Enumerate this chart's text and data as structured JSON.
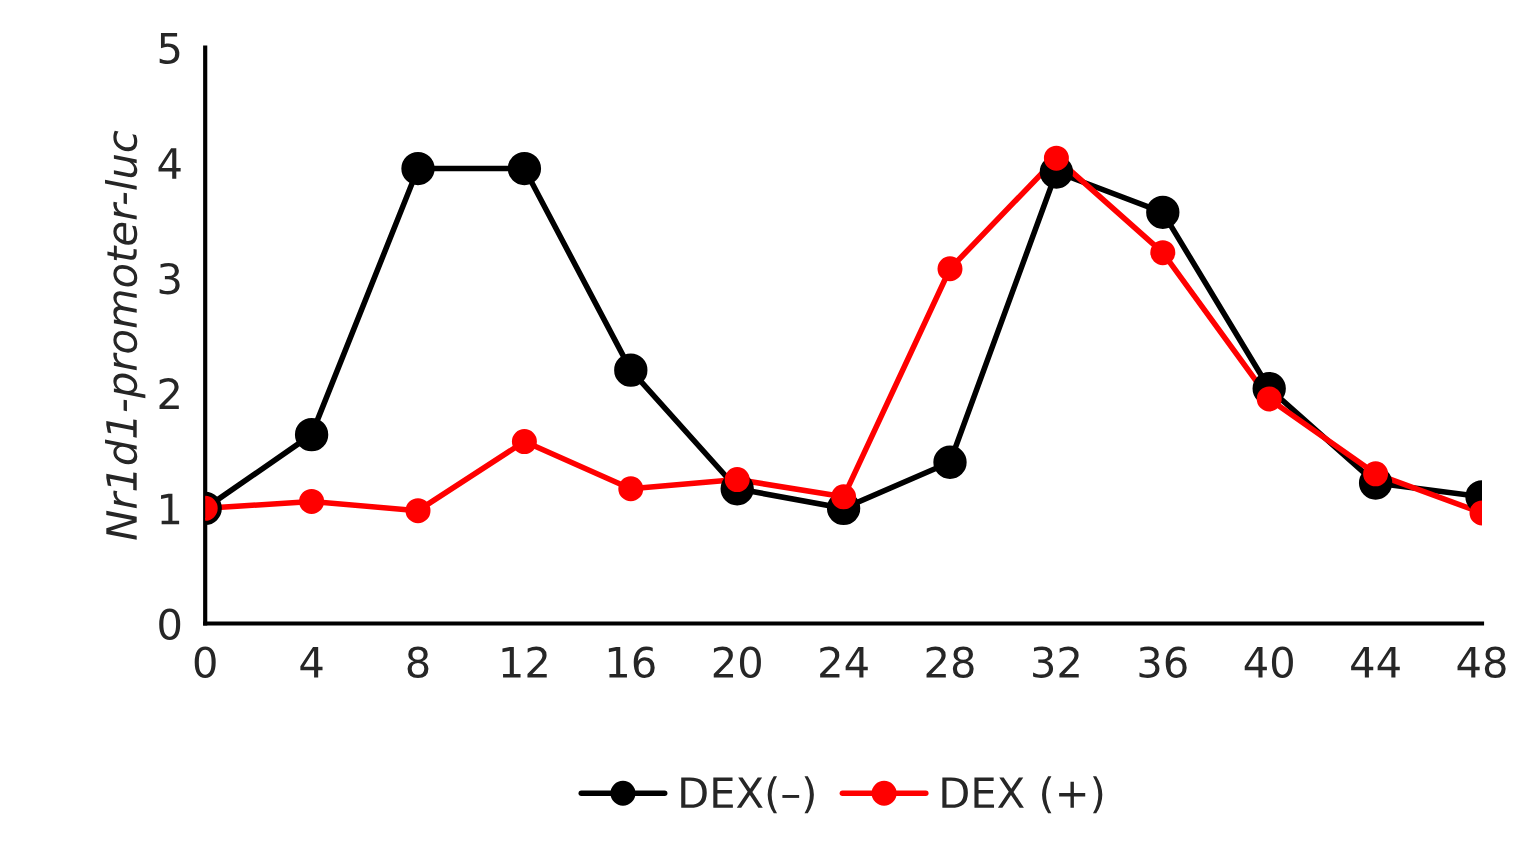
{
  "chart_data": {
    "type": "line",
    "ylabel": "Nr1d1-promoter-luc",
    "x": [
      0,
      4,
      8,
      12,
      16,
      20,
      24,
      28,
      32,
      36,
      40,
      44,
      48
    ],
    "xlim": [
      0,
      48
    ],
    "xticks": [
      0,
      4,
      8,
      12,
      16,
      20,
      24,
      28,
      32,
      36,
      40,
      44,
      48
    ],
    "ylim": [
      0,
      5
    ],
    "yticks": [
      0,
      1,
      2,
      3,
      4,
      5
    ],
    "grid": false,
    "legend": "bottom",
    "marker": "circle",
    "line_style": "solid",
    "series": [
      {
        "name": "DEX(–)",
        "color": "#000000",
        "values": [
          1.0,
          1.64,
          3.95,
          3.95,
          2.2,
          1.17,
          1.0,
          1.4,
          3.92,
          3.57,
          2.04,
          1.22,
          1.1
        ]
      },
      {
        "name": "DEX (+)",
        "color": "#ff0000",
        "values": [
          1.0,
          1.06,
          0.98,
          1.58,
          1.17,
          1.25,
          1.1,
          3.08,
          4.04,
          3.22,
          1.95,
          1.3,
          0.96
        ]
      }
    ]
  }
}
